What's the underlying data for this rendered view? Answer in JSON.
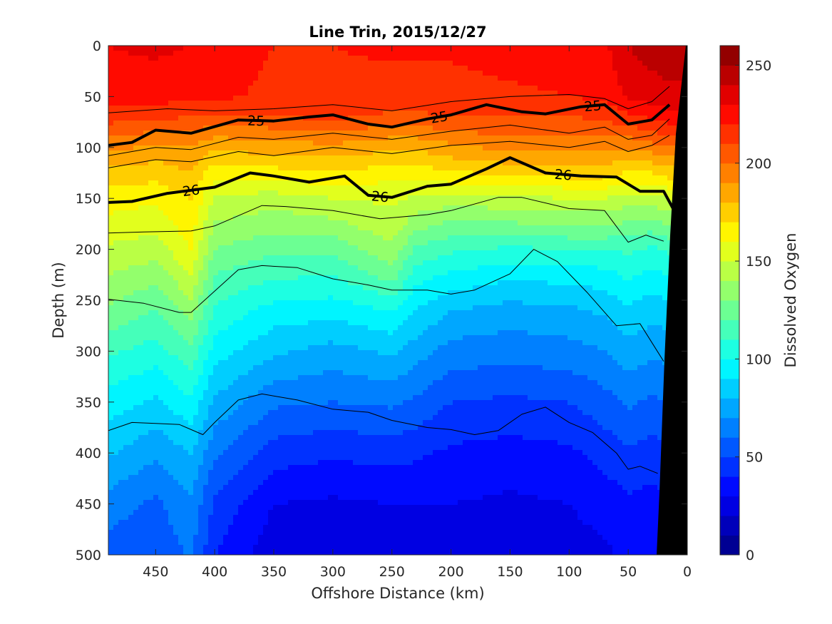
{
  "chart_data": {
    "type": "contour",
    "title": "Line Trin, 2015/12/27",
    "xlabel": "Offshore Distance (km)",
    "ylabel": "Depth (m)",
    "xlim": [
      490,
      0
    ],
    "ylim": [
      0,
      500
    ],
    "x_reversed": true,
    "y_reversed": true,
    "xticks": [
      450,
      400,
      350,
      300,
      250,
      200,
      150,
      100,
      50,
      0
    ],
    "yticks": [
      0,
      50,
      100,
      150,
      200,
      250,
      300,
      350,
      400,
      450,
      500
    ],
    "colorbar": {
      "label": "Dissolved Oxygen",
      "range": [
        0,
        260
      ],
      "ticks": [
        0,
        50,
        100,
        150,
        200,
        250
      ],
      "levels": 26,
      "colormap": "jet"
    },
    "oxygen_profiles": {
      "x": [
        490,
        450,
        420,
        400,
        350,
        300,
        250,
        230,
        200,
        150,
        100,
        70,
        50,
        30,
        15
      ],
      "depths": [
        0,
        50,
        70,
        90,
        110,
        130,
        150,
        180,
        200,
        230,
        260,
        300,
        350,
        400,
        450,
        500
      ],
      "values": [
        [
          230,
          225,
          215,
          200,
          185,
          175,
          165,
          155,
          148,
          138,
          128,
          112,
          95,
          82,
          65,
          55
        ],
        [
          232,
          225,
          212,
          195,
          182,
          172,
          162,
          152,
          145,
          132,
          120,
          105,
          88,
          72,
          58,
          52
        ],
        [
          230,
          222,
          210,
          195,
          185,
          178,
          170,
          165,
          160,
          148,
          135,
          118,
          98,
          80,
          68,
          62
        ],
        [
          225,
          222,
          208,
          190,
          175,
          160,
          148,
          138,
          130,
          118,
          108,
          95,
          78,
          62,
          48,
          40
        ],
        [
          220,
          218,
          210,
          192,
          178,
          162,
          145,
          132,
          122,
          110,
          96,
          82,
          62,
          45,
          30,
          24
        ],
        [
          220,
          218,
          212,
          195,
          180,
          165,
          150,
          135,
          122,
          108,
          94,
          76,
          60,
          42,
          28,
          24
        ],
        [
          222,
          215,
          208,
          190,
          175,
          162,
          152,
          145,
          138,
          122,
          100,
          82,
          62,
          44,
          30,
          24
        ],
        [
          222,
          215,
          208,
          190,
          175,
          160,
          148,
          132,
          118,
          102,
          90,
          75,
          58,
          42,
          30,
          24
        ],
        [
          222,
          216,
          210,
          195,
          180,
          165,
          145,
          125,
          112,
          96,
          80,
          66,
          50,
          38,
          30,
          26
        ],
        [
          225,
          218,
          210,
          200,
          185,
          168,
          148,
          125,
          108,
          90,
          76,
          64,
          48,
          36,
          28,
          24
        ],
        [
          225,
          220,
          210,
          198,
          185,
          170,
          150,
          128,
          110,
          92,
          78,
          66,
          50,
          38,
          30,
          26
        ],
        [
          228,
          222,
          212,
          200,
          185,
          170,
          150,
          128,
          110,
          94,
          82,
          70,
          56,
          44,
          34,
          28
        ],
        [
          240,
          232,
          218,
          200,
          182,
          165,
          145,
          125,
          112,
          100,
          88,
          76,
          62,
          48,
          38,
          32
        ],
        [
          245,
          235,
          222,
          205,
          185,
          165,
          145,
          122,
          108,
          95,
          84,
          72,
          58,
          46,
          36,
          30
        ],
        [
          245,
          238,
          225,
          210,
          190,
          170,
          150,
          128,
          112,
          98,
          86,
          74,
          60,
          48,
          38,
          32
        ]
      ]
    },
    "density_contours": [
      {
        "label": "25",
        "thick": true,
        "points": [
          [
            490,
            98
          ],
          [
            470,
            95
          ],
          [
            450,
            83
          ],
          [
            420,
            86
          ],
          [
            380,
            73
          ],
          [
            350,
            74
          ],
          [
            320,
            70
          ],
          [
            300,
            68
          ],
          [
            270,
            77
          ],
          [
            250,
            80
          ],
          [
            220,
            72
          ],
          [
            200,
            68
          ],
          [
            170,
            58
          ],
          [
            140,
            65
          ],
          [
            120,
            67
          ],
          [
            90,
            60
          ],
          [
            70,
            58
          ],
          [
            50,
            77
          ],
          [
            30,
            73
          ],
          [
            15,
            58
          ]
        ]
      },
      {
        "label": "26",
        "thick": true,
        "points": [
          [
            490,
            154
          ],
          [
            470,
            153
          ],
          [
            440,
            145
          ],
          [
            400,
            139
          ],
          [
            370,
            125
          ],
          [
            350,
            128
          ],
          [
            320,
            134
          ],
          [
            290,
            128
          ],
          [
            270,
            147
          ],
          [
            250,
            149
          ],
          [
            220,
            138
          ],
          [
            200,
            136
          ],
          [
            170,
            121
          ],
          [
            150,
            110
          ],
          [
            120,
            125
          ],
          [
            90,
            128
          ],
          [
            60,
            129
          ],
          [
            40,
            143
          ],
          [
            20,
            143
          ],
          [
            12,
            160
          ]
        ]
      },
      {
        "label": "",
        "thick": false,
        "points": [
          [
            490,
            66
          ],
          [
            440,
            62
          ],
          [
            400,
            64
          ],
          [
            350,
            62
          ],
          [
            300,
            58
          ],
          [
            250,
            64
          ],
          [
            200,
            55
          ],
          [
            150,
            50
          ],
          [
            100,
            48
          ],
          [
            70,
            52
          ],
          [
            50,
            62
          ],
          [
            30,
            55
          ],
          [
            15,
            40
          ]
        ]
      },
      {
        "label": "",
        "thick": false,
        "points": [
          [
            490,
            108
          ],
          [
            450,
            100
          ],
          [
            420,
            102
          ],
          [
            380,
            90
          ],
          [
            350,
            92
          ],
          [
            300,
            86
          ],
          [
            250,
            92
          ],
          [
            200,
            84
          ],
          [
            150,
            78
          ],
          [
            100,
            86
          ],
          [
            70,
            80
          ],
          [
            50,
            92
          ],
          [
            30,
            88
          ],
          [
            15,
            72
          ]
        ]
      },
      {
        "label": "",
        "thick": false,
        "points": [
          [
            490,
            120
          ],
          [
            450,
            112
          ],
          [
            420,
            114
          ],
          [
            380,
            104
          ],
          [
            350,
            108
          ],
          [
            300,
            100
          ],
          [
            250,
            106
          ],
          [
            200,
            98
          ],
          [
            150,
            94
          ],
          [
            100,
            100
          ],
          [
            70,
            94
          ],
          [
            50,
            104
          ],
          [
            30,
            98
          ],
          [
            15,
            88
          ]
        ]
      },
      {
        "label": "",
        "thick": false,
        "points": [
          [
            490,
            184
          ],
          [
            460,
            183
          ],
          [
            420,
            182
          ],
          [
            400,
            177
          ],
          [
            360,
            157
          ],
          [
            340,
            158
          ],
          [
            300,
            162
          ],
          [
            260,
            170
          ],
          [
            220,
            166
          ],
          [
            200,
            162
          ],
          [
            160,
            149
          ],
          [
            140,
            149
          ],
          [
            100,
            160
          ],
          [
            70,
            162
          ],
          [
            50,
            193
          ],
          [
            35,
            186
          ],
          [
            20,
            192
          ]
        ]
      },
      {
        "label": "",
        "thick": false,
        "points": [
          [
            490,
            249
          ],
          [
            460,
            253
          ],
          [
            430,
            262
          ],
          [
            420,
            262
          ],
          [
            380,
            220
          ],
          [
            360,
            216
          ],
          [
            330,
            218
          ],
          [
            300,
            229
          ],
          [
            270,
            235
          ],
          [
            250,
            240
          ],
          [
            220,
            240
          ],
          [
            200,
            244
          ],
          [
            180,
            240
          ],
          [
            150,
            224
          ],
          [
            130,
            200
          ],
          [
            110,
            212
          ],
          [
            85,
            242
          ],
          [
            60,
            275
          ],
          [
            40,
            273
          ],
          [
            20,
            310
          ]
        ]
      },
      {
        "label": "",
        "thick": false,
        "points": [
          [
            490,
            378
          ],
          [
            470,
            370
          ],
          [
            450,
            371
          ],
          [
            430,
            372
          ],
          [
            410,
            382
          ],
          [
            400,
            370
          ],
          [
            380,
            348
          ],
          [
            360,
            342
          ],
          [
            330,
            348
          ],
          [
            300,
            357
          ],
          [
            270,
            360
          ],
          [
            250,
            368
          ],
          [
            220,
            375
          ],
          [
            200,
            377
          ],
          [
            180,
            382
          ],
          [
            160,
            378
          ],
          [
            140,
            362
          ],
          [
            120,
            355
          ],
          [
            100,
            370
          ],
          [
            80,
            380
          ],
          [
            60,
            400
          ],
          [
            50,
            416
          ],
          [
            40,
            413
          ],
          [
            25,
            420
          ]
        ]
      }
    ]
  }
}
